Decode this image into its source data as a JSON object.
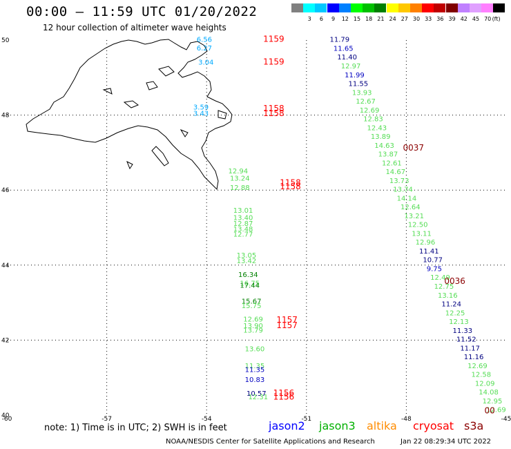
{
  "header": {
    "title": "00:00 – 11:59 UTC 01/20/2022",
    "subtitle": "12 hour collection of altimeter wave heights"
  },
  "legend": {
    "unit": "(ft)",
    "bins": [
      {
        "label": "",
        "color": "#808080"
      },
      {
        "label": "3",
        "color": "#00ffff"
      },
      {
        "label": "6",
        "color": "#00c8ff"
      },
      {
        "label": "9",
        "color": "#0000ff"
      },
      {
        "label": "12",
        "color": "#0080ff"
      },
      {
        "label": "15",
        "color": "#00ff00"
      },
      {
        "label": "18",
        "color": "#00c000"
      },
      {
        "label": "21",
        "color": "#008000"
      },
      {
        "label": "24",
        "color": "#ffff00"
      },
      {
        "label": "27",
        "color": "#ffc800"
      },
      {
        "label": "30",
        "color": "#ff8000"
      },
      {
        "label": "33",
        "color": "#ff0000"
      },
      {
        "label": "36",
        "color": "#c00000"
      },
      {
        "label": "39",
        "color": "#800000"
      },
      {
        "label": "42",
        "color": "#c080ff"
      },
      {
        "label": "45",
        "color": "#e0a0ff"
      },
      {
        "label": "70",
        "color": "#ff80ff"
      },
      {
        "label": "",
        "color": "#000000"
      }
    ]
  },
  "axes": {
    "lon_labels": [
      "-60",
      "-57",
      "-54",
      "-51",
      "-48",
      "-45"
    ],
    "lat_labels": [
      "50",
      "48",
      "46",
      "44",
      "42",
      "40"
    ],
    "lon_range": [
      -60,
      -45
    ],
    "lat_range": [
      40,
      50
    ]
  },
  "passes": {
    "east": {
      "color": "#000080",
      "values": [
        "11.79",
        "11.65",
        "11.40",
        "12.97",
        "11.99",
        "11.55",
        "13.93",
        "12.67",
        "12.69",
        "12.83",
        "12.43",
        "13.89",
        "14.63",
        "13.87",
        "12.61",
        "14.67",
        "13.73",
        "13.74",
        "14.14",
        "12.64",
        "13.21",
        "12.50",
        "13.11",
        "12.96",
        "11.41",
        "10.77",
        "9.75",
        "12.49",
        "12.75",
        "13.16",
        "11.24",
        "12.25",
        "12.13",
        "11.33",
        "11.52",
        "11.17",
        "11.16",
        "12.69",
        "12.58",
        "12.09",
        "14.08",
        "12.95",
        "12.69"
      ],
      "label_colors": [
        "#000080",
        "#0000c0",
        "#000080",
        "#55dd55",
        "#0000c0",
        "#000080",
        "#55dd55",
        "#55dd55",
        "#55dd55",
        "#55dd55",
        "#55dd55",
        "#55dd55",
        "#55dd55",
        "#55dd55",
        "#55dd55",
        "#55dd55",
        "#55dd55",
        "#55dd55",
        "#55dd55",
        "#55dd55",
        "#55dd55",
        "#55dd55",
        "#55dd55",
        "#55dd55",
        "#000080",
        "#000080",
        "#0000c0",
        "#55dd55",
        "#55dd55",
        "#55dd55",
        "#000080",
        "#55dd55",
        "#55dd55",
        "#000080",
        "#000080",
        "#000080",
        "#000080",
        "#55dd55",
        "#55dd55",
        "#55dd55",
        "#55dd55",
        "#55dd55",
        "#55dd55"
      ],
      "times": [
        {
          "label": "0037",
          "lat": 47.05
        },
        {
          "label": "0036",
          "lat": 43.5
        },
        {
          "label": "00",
          "lat": 40.05
        }
      ]
    },
    "west": {
      "values": [
        "6.56",
        "6.27",
        "3.04",
        "3.59",
        "3.43",
        "12.94",
        "13.24",
        "12.88",
        "13.01",
        "13.40",
        "12.87",
        "13.48",
        "12.77",
        "13.05",
        "13.42",
        "16.34",
        "16.75",
        "17.44",
        "15.67",
        "15.75",
        "12.69",
        "13.90",
        "13.79",
        "13.60",
        "11.35",
        "11.35",
        "10.83",
        "10.57",
        "12.31"
      ],
      "label_colors": [
        "#00aaff",
        "#00aaff",
        "#00aaff",
        "#00aaff",
        "#00aaff",
        "#55dd55",
        "#55dd55",
        "#55dd55",
        "#55dd55",
        "#55dd55",
        "#55dd55",
        "#55dd55",
        "#55dd55",
        "#55dd55",
        "#55dd55",
        "#008000",
        "#55dd55",
        "#008000",
        "#008000",
        "#55dd55",
        "#55dd55",
        "#55dd55",
        "#55dd55",
        "#55dd55",
        "#55dd55",
        "#0000c0",
        "#0000c0",
        "#000080",
        "#55dd55"
      ],
      "times": [
        {
          "label": "1159",
          "lat": 49.95
        },
        {
          "label": "1159",
          "lat": 49.35
        },
        {
          "label": "1158",
          "lat": 48.1
        },
        {
          "label": "1158",
          "lat": 47.97
        },
        {
          "label": "1158",
          "lat": 46.12
        },
        {
          "label": "1158",
          "lat": 46.02
        },
        {
          "label": "1157",
          "lat": 42.47
        },
        {
          "label": "1157",
          "lat": 42.32
        },
        {
          "label": "1156",
          "lat": 40.52
        },
        {
          "label": "1156",
          "lat": 40.41
        }
      ]
    }
  },
  "footer": {
    "note": "note: 1) Time is in UTC; 2) SWH is in feet",
    "satellites": [
      {
        "name": "jason2",
        "color": "#0000ff"
      },
      {
        "name": "jason3",
        "color": "#00b000"
      },
      {
        "name": "altika",
        "color": "#ff8c00"
      },
      {
        "name": "cryosat",
        "color": "#ff0000"
      },
      {
        "name": "s3a",
        "color": "#8b0000"
      }
    ],
    "credit": "NOAA/NESDIS Center for Satellite Applications and Research",
    "timestamp": "Jan 22 08:29:34 UTC 2022"
  }
}
